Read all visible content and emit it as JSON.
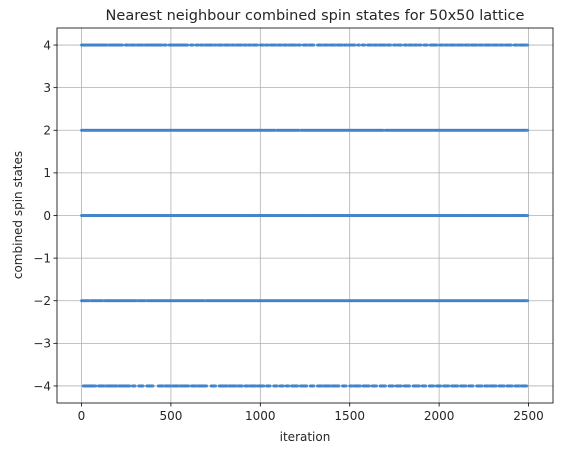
{
  "chart_data": {
    "type": "scatter",
    "title": "Nearest neighbour combined spin states for 50x50 lattice",
    "xlabel": "iteration",
    "ylabel": "combined spin states",
    "xlim": [
      -137,
      2637
    ],
    "ylim": [
      -4.4,
      4.4
    ],
    "grid": true,
    "marker_color": "#4a90d9",
    "x_ticks": [
      {
        "value": 0,
        "label": "0"
      },
      {
        "value": 500,
        "label": "500"
      },
      {
        "value": 1000,
        "label": "1000"
      },
      {
        "value": 1500,
        "label": "1500"
      },
      {
        "value": 2000,
        "label": "2000"
      },
      {
        "value": 2500,
        "label": "2500"
      }
    ],
    "y_ticks": [
      {
        "value": 4,
        "label": "4"
      },
      {
        "value": 3,
        "label": "3"
      },
      {
        "value": 2,
        "label": "2"
      },
      {
        "value": 1,
        "label": "1"
      },
      {
        "value": 0,
        "label": "0"
      },
      {
        "value": -1,
        "label": "−1"
      },
      {
        "value": -2,
        "label": "−2"
      },
      {
        "value": -3,
        "label": "−3"
      },
      {
        "value": -4,
        "label": "−4"
      }
    ],
    "series": [
      {
        "points": [
          {
            "y": 4,
            "segments": [
              [
                0,
                25
              ],
              [
                30,
                55
              ],
              [
                60,
                145
              ],
              [
                155,
                230
              ],
              [
                245,
                265
              ],
              [
                275,
                300
              ],
              [
                310,
                345
              ],
              [
                355,
                450
              ],
              [
                460,
                475
              ],
              [
                490,
                515
              ],
              [
                520,
                560
              ],
              [
                565,
                595
              ],
              [
                610,
                625
              ],
              [
                640,
                655
              ],
              [
                665,
                680
              ],
              [
                690,
                735
              ],
              [
                745,
                755
              ],
              [
                765,
                790
              ],
              [
                800,
                830
              ],
              [
                840,
                855
              ],
              [
                865,
                900
              ],
              [
                910,
                925
              ],
              [
                935,
                950
              ],
              [
                960,
                985
              ],
              [
                1000,
                1020
              ],
              [
                1030,
                1045
              ],
              [
                1055,
                1090
              ],
              [
                1100,
                1120
              ],
              [
                1130,
                1150
              ],
              [
                1160,
                1200
              ],
              [
                1210,
                1225
              ],
              [
                1240,
                1265
              ],
              [
                1275,
                1300
              ],
              [
                1320,
                1345
              ],
              [
                1355,
                1380
              ],
              [
                1390,
                1420
              ],
              [
                1430,
                1460
              ],
              [
                1470,
                1485
              ],
              [
                1495,
                1530
              ],
              [
                1545,
                1555
              ],
              [
                1570,
                1585
              ],
              [
                1600,
                1625
              ],
              [
                1635,
                1655
              ],
              [
                1665,
                1700
              ],
              [
                1710,
                1730
              ],
              [
                1745,
                1760
              ],
              [
                1770,
                1790
              ],
              [
                1805,
                1820
              ],
              [
                1830,
                1850
              ],
              [
                1860,
                1880
              ],
              [
                1890,
                1900
              ],
              [
                1915,
                1935
              ],
              [
                1950,
                1990
              ],
              [
                2005,
                2025
              ],
              [
                2035,
                2050
              ],
              [
                2060,
                2090
              ],
              [
                2100,
                2135
              ],
              [
                2145,
                2170
              ],
              [
                2180,
                2215
              ],
              [
                2225,
                2245
              ],
              [
                2255,
                2290
              ],
              [
                2300,
                2330
              ],
              [
                2340,
                2360
              ],
              [
                2370,
                2405
              ],
              [
                2420,
                2440
              ],
              [
                2450,
                2495
              ]
            ]
          },
          {
            "y": 2,
            "segments": [
              [
                0,
                1085
              ],
              [
                1095,
                1220
              ],
              [
                1230,
                1690
              ],
              [
                1700,
                2499
              ]
            ]
          },
          {
            "y": 0,
            "segments": [
              [
                0,
                2499
              ]
            ]
          },
          {
            "y": -2,
            "segments": [
              [
                0,
                45
              ],
              [
                55,
                120
              ],
              [
                130,
                310
              ],
              [
                320,
                360
              ],
              [
                370,
                690
              ],
              [
                700,
                2499
              ]
            ]
          },
          {
            "y": -4,
            "segments": [
              [
                10,
                80
              ],
              [
                95,
                130
              ],
              [
                140,
                200
              ],
              [
                210,
                270
              ],
              [
                285,
                300
              ],
              [
                320,
                345
              ],
              [
                365,
                400
              ],
              [
                430,
                460
              ],
              [
                470,
                500
              ],
              [
                510,
                545
              ],
              [
                555,
                600
              ],
              [
                615,
                640
              ],
              [
                650,
                700
              ],
              [
                725,
                750
              ],
              [
                770,
                815
              ],
              [
                825,
                865
              ],
              [
                875,
                900
              ],
              [
                915,
                935
              ],
              [
                945,
                975
              ],
              [
                985,
                1020
              ],
              [
                1035,
                1055
              ],
              [
                1075,
                1095
              ],
              [
                1110,
                1130
              ],
              [
                1145,
                1160
              ],
              [
                1175,
                1210
              ],
              [
                1225,
                1260
              ],
              [
                1280,
                1300
              ],
              [
                1320,
                1345
              ],
              [
                1355,
                1390
              ],
              [
                1400,
                1440
              ],
              [
                1460,
                1480
              ],
              [
                1500,
                1515
              ],
              [
                1525,
                1560
              ],
              [
                1575,
                1610
              ],
              [
                1625,
                1650
              ],
              [
                1670,
                1700
              ],
              [
                1720,
                1745
              ],
              [
                1760,
                1790
              ],
              [
                1805,
                1835
              ],
              [
                1855,
                1890
              ],
              [
                1905,
                1925
              ],
              [
                1945,
                1970
              ],
              [
                1985,
                2010
              ],
              [
                2025,
                2055
              ],
              [
                2070,
                2105
              ],
              [
                2120,
                2150
              ],
              [
                2165,
                2190
              ],
              [
                2210,
                2240
              ],
              [
                2255,
                2275
              ],
              [
                2285,
                2320
              ],
              [
                2335,
                2365
              ],
              [
                2380,
                2410
              ],
              [
                2425,
                2450
              ],
              [
                2460,
                2490
              ]
            ]
          }
        ]
      }
    ]
  }
}
